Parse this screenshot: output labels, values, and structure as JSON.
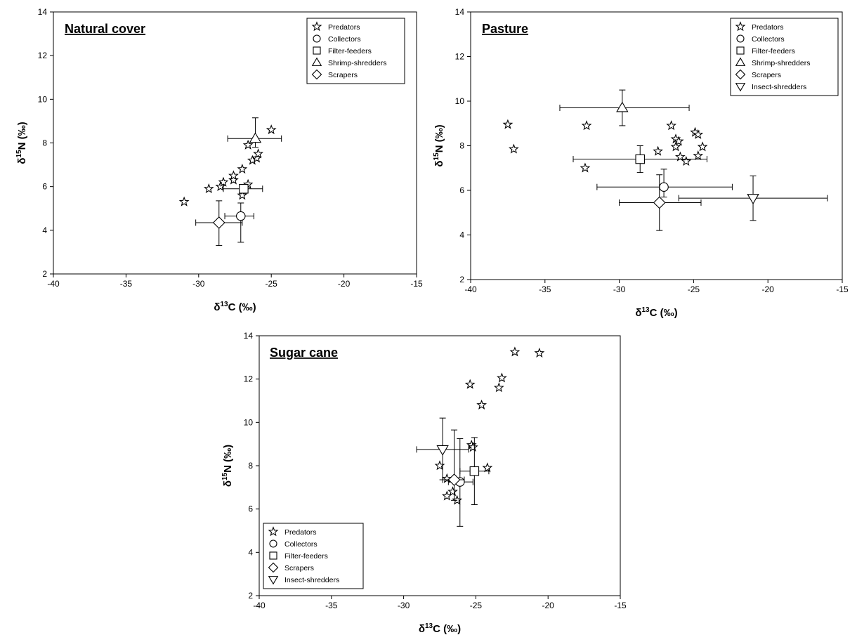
{
  "figure": {
    "x_unit_label": {
      "delta": "δ",
      "sup": "13",
      "rest": "C (‰)"
    },
    "y_unit_label": {
      "delta": "δ",
      "sup": "15",
      "rest": "N (‰)"
    },
    "marker_styles": {
      "Predators": "star",
      "Collectors": "circle",
      "Filter-feeders": "square",
      "Shrimp-shredders": "triangle-up",
      "Scrapers": "diamond",
      "Insect-shredders": "triangle-down"
    },
    "colors": {
      "line": "#000000",
      "marker_fill": "#ffffff",
      "background": "#ffffff"
    }
  },
  "chart_data": [
    {
      "type": "scatter",
      "title": "Natural cover",
      "xlabel": "δ13C (‰)",
      "ylabel": "δ15N (‰)",
      "xlim": [
        -40,
        -15
      ],
      "ylim": [
        2,
        14
      ],
      "xticks": [
        -40,
        -35,
        -30,
        -25,
        -20,
        -15
      ],
      "yticks": [
        2,
        4,
        6,
        8,
        10,
        12,
        14
      ],
      "legend_position": "top-right",
      "legend": [
        "Predators",
        "Collectors",
        "Filter-feeders",
        "Shrimp-shredders",
        "Scrapers"
      ],
      "series": [
        {
          "name": "Predators",
          "points": [
            [
              -31.0,
              5.3
            ],
            [
              -29.3,
              5.9
            ],
            [
              -28.5,
              6.0
            ],
            [
              -28.3,
              6.2
            ],
            [
              -27.6,
              6.3
            ],
            [
              -27.6,
              6.5
            ],
            [
              -27.0,
              6.8
            ],
            [
              -26.6,
              6.1
            ],
            [
              -27.0,
              5.6
            ],
            [
              -26.6,
              7.9
            ],
            [
              -26.3,
              7.2
            ],
            [
              -26.0,
              7.3
            ],
            [
              -25.9,
              7.5
            ],
            [
              -25.0,
              8.6
            ]
          ]
        },
        {
          "name": "Collectors",
          "mean": [
            -27.1,
            4.65
          ],
          "xerr": [
            1.1,
            0.9
          ],
          "yerr": [
            1.2,
            0.6
          ]
        },
        {
          "name": "Filter-feeders",
          "mean": [
            -26.9,
            5.9
          ],
          "xerr": [
            1.4,
            1.3
          ],
          "yerr": [
            0.2,
            0.2
          ]
        },
        {
          "name": "Shrimp-shredders",
          "mean": [
            -26.1,
            8.2
          ],
          "xerr": [
            1.9,
            1.8
          ],
          "yerr": [
            0.4,
            0.95
          ]
        },
        {
          "name": "Scrapers",
          "mean": [
            -28.6,
            4.35
          ],
          "xerr": [
            1.6,
            1.6
          ],
          "yerr": [
            1.05,
            1.0
          ]
        }
      ]
    },
    {
      "type": "scatter",
      "title": "Pasture",
      "xlabel": "δ13C (‰)",
      "ylabel": "δ15N (‰)",
      "xlim": [
        -40,
        -15
      ],
      "ylim": [
        2,
        14
      ],
      "xticks": [
        -40,
        -35,
        -30,
        -25,
        -20,
        -15
      ],
      "yticks": [
        2,
        4,
        6,
        8,
        10,
        12,
        14
      ],
      "legend_position": "top-right",
      "legend": [
        "Predators",
        "Collectors",
        "Filter-feeders",
        "Shrimp-shredders",
        "Scrapers",
        "Insect-shredders"
      ],
      "series": [
        {
          "name": "Predators",
          "points": [
            [
              -37.5,
              8.95
            ],
            [
              -37.1,
              7.85
            ],
            [
              -32.2,
              8.9
            ],
            [
              -32.3,
              7.0
            ],
            [
              -27.4,
              7.75
            ],
            [
              -26.5,
              8.9
            ],
            [
              -26.2,
              8.3
            ],
            [
              -26.0,
              8.2
            ],
            [
              -26.2,
              7.95
            ],
            [
              -25.9,
              7.5
            ],
            [
              -25.5,
              7.3
            ],
            [
              -24.9,
              8.6
            ],
            [
              -24.7,
              8.5
            ],
            [
              -24.7,
              7.55
            ],
            [
              -24.4,
              7.95
            ]
          ]
        },
        {
          "name": "Collectors",
          "mean": [
            -27.0,
            6.15
          ],
          "xerr": [
            4.5,
            4.6
          ],
          "yerr": [
            0.45,
            0.8
          ]
        },
        {
          "name": "Filter-feeders",
          "mean": [
            -28.6,
            7.4
          ],
          "xerr": [
            4.5,
            4.5
          ],
          "yerr": [
            0.6,
            0.6
          ]
        },
        {
          "name": "Shrimp-shredders",
          "mean": [
            -29.8,
            9.7
          ],
          "xerr": [
            4.2,
            4.5
          ],
          "yerr": [
            0.8,
            0.8
          ]
        },
        {
          "name": "Scrapers",
          "mean": [
            -27.3,
            5.45
          ],
          "xerr": [
            2.7,
            2.8
          ],
          "yerr": [
            1.25,
            1.25
          ]
        },
        {
          "name": "Insect-shredders",
          "mean": [
            -21.0,
            5.65
          ],
          "xerr": [
            5.0,
            5.0
          ],
          "yerr": [
            1.0,
            1.0
          ]
        }
      ]
    },
    {
      "type": "scatter",
      "title": "Sugar cane",
      "xlabel": "δ13C (‰)",
      "ylabel": "δ15N (‰)",
      "xlim": [
        -40,
        -15
      ],
      "ylim": [
        2,
        14
      ],
      "xticks": [
        -40,
        -35,
        -30,
        -25,
        -20,
        -15
      ],
      "yticks": [
        2,
        4,
        6,
        8,
        10,
        12,
        14
      ],
      "legend_position": "bottom-left",
      "legend": [
        "Predators",
        "Collectors",
        "Filter-feeders",
        "Scrapers",
        "Insect-shredders"
      ],
      "series": [
        {
          "name": "Predators",
          "points": [
            [
              -27.5,
              8.0
            ],
            [
              -27.0,
              7.4
            ],
            [
              -27.0,
              6.6
            ],
            [
              -26.6,
              6.8
            ],
            [
              -26.3,
              6.4
            ],
            [
              -25.3,
              8.95
            ],
            [
              -25.2,
              8.85
            ],
            [
              -25.4,
              11.75
            ],
            [
              -24.6,
              10.8
            ],
            [
              -24.2,
              7.9
            ],
            [
              -23.4,
              11.6
            ],
            [
              -23.2,
              12.05
            ],
            [
              -22.3,
              13.25
            ],
            [
              -20.6,
              13.2
            ]
          ]
        },
        {
          "name": "Collectors",
          "mean": [
            -26.1,
            7.25
          ],
          "xerr": [
            0.8,
            0.9
          ],
          "yerr": [
            2.05,
            2.0
          ]
        },
        {
          "name": "Filter-feeders",
          "mean": [
            -25.1,
            7.75
          ],
          "xerr": [
            1.0,
            1.0
          ],
          "yerr": [
            1.55,
            1.55
          ]
        },
        {
          "name": "Scrapers",
          "mean": [
            -26.5,
            7.35
          ],
          "xerr": [
            0.8,
            0.7
          ],
          "yerr": [
            0.95,
            2.3
          ]
        },
        {
          "name": "Insect-shredders",
          "mean": [
            -27.3,
            8.75
          ],
          "xerr": [
            1.8,
            1.8
          ],
          "yerr": [
            1.4,
            1.45
          ]
        }
      ]
    }
  ]
}
